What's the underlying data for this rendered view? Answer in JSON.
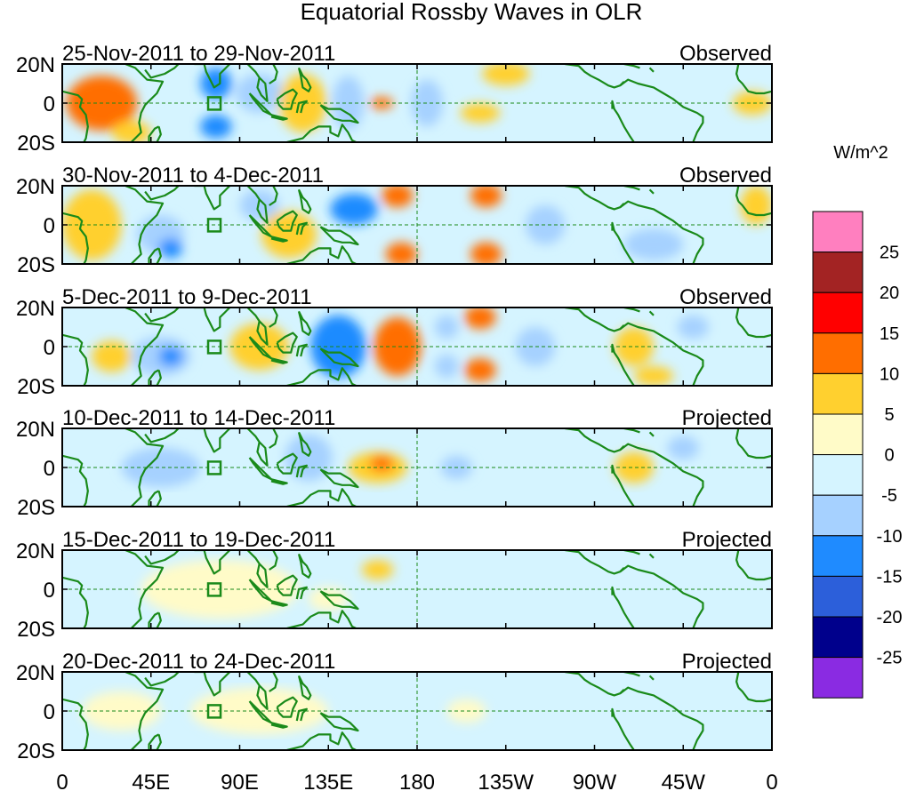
{
  "title": "Equatorial Rossby Waves in OLR",
  "colorbar": {
    "unit": "W/m^2",
    "tick_labels": [
      "25",
      "20",
      "15",
      "10",
      "5",
      "0",
      "-5",
      "-10",
      "-15",
      "-20",
      "-25"
    ],
    "colors_top_to_bottom": [
      "#ff7fbf",
      "#a32323",
      "#ff0000",
      "#ff6e00",
      "#ffd02f",
      "#fffbc8",
      "#d5f4ff",
      "#a6d1ff",
      "#1f8bff",
      "#2c5fda",
      "#00008c",
      "#8a2be2"
    ]
  },
  "x_axis": {
    "tick_labels": [
      "0",
      "45E",
      "90E",
      "135E",
      "180",
      "135W",
      "90W",
      "45W",
      "0"
    ]
  },
  "panels": [
    {
      "date_range": "25-Nov-2011 to 29-Nov-2011",
      "status": "Observed",
      "y_labels": [
        "20N",
        "0",
        "20S"
      ]
    },
    {
      "date_range": "30-Nov-2011 to 4-Dec-2011",
      "status": "Observed",
      "y_labels": [
        "20N",
        "0",
        "20S"
      ]
    },
    {
      "date_range": "5-Dec-2011 to 9-Dec-2011",
      "status": "Observed",
      "y_labels": [
        "20N",
        "0",
        "20S"
      ]
    },
    {
      "date_range": "10-Dec-2011 to 14-Dec-2011",
      "status": "Projected",
      "y_labels": [
        "20N",
        "0",
        "20S"
      ]
    },
    {
      "date_range": "15-Dec-2011 to 19-Dec-2011",
      "status": "Projected",
      "y_labels": [
        "20N",
        "0",
        "20S"
      ]
    },
    {
      "date_range": "20-Dec-2011 to 24-Dec-2011",
      "status": "Projected",
      "y_labels": [
        "20N",
        "0",
        "20S"
      ]
    }
  ],
  "anomaly_blobs": [
    [
      {
        "lon": 20,
        "lat": 0,
        "rx": 18,
        "ry": 14,
        "v": 10
      },
      {
        "lon": 35,
        "lat": -15,
        "rx": 10,
        "ry": 6,
        "v": 5
      },
      {
        "lon": 78,
        "lat": 10,
        "rx": 8,
        "ry": 8,
        "v": -10
      },
      {
        "lon": 78,
        "lat": -12,
        "rx": 8,
        "ry": 6,
        "v": -10
      },
      {
        "lon": 100,
        "lat": 5,
        "rx": 12,
        "ry": 10,
        "v": -5
      },
      {
        "lon": 122,
        "lat": 0,
        "rx": 12,
        "ry": 15,
        "v": 5
      },
      {
        "lon": 145,
        "lat": 0,
        "rx": 8,
        "ry": 14,
        "v": -5
      },
      {
        "lon": 162,
        "lat": 0,
        "rx": 6,
        "ry": 3,
        "v": 10
      },
      {
        "lon": 185,
        "lat": 0,
        "rx": 8,
        "ry": 12,
        "v": -5
      },
      {
        "lon": 225,
        "lat": 15,
        "rx": 12,
        "ry": 6,
        "v": 5
      },
      {
        "lon": 212,
        "lat": -5,
        "rx": 10,
        "ry": 5,
        "v": 5
      },
      {
        "lon": 350,
        "lat": 0,
        "rx": 10,
        "ry": 6,
        "v": 5
      }
    ],
    [
      {
        "lon": 15,
        "lat": 0,
        "rx": 15,
        "ry": 18,
        "v": 5
      },
      {
        "lon": 50,
        "lat": -5,
        "rx": 12,
        "ry": 10,
        "v": -5
      },
      {
        "lon": 55,
        "lat": -12,
        "rx": 6,
        "ry": 5,
        "v": -10
      },
      {
        "lon": 100,
        "lat": 10,
        "rx": 10,
        "ry": 8,
        "v": -5
      },
      {
        "lon": 115,
        "lat": -5,
        "rx": 14,
        "ry": 12,
        "v": 5
      },
      {
        "lon": 148,
        "lat": 8,
        "rx": 12,
        "ry": 8,
        "v": -10
      },
      {
        "lon": 170,
        "lat": 15,
        "rx": 8,
        "ry": 6,
        "v": 10
      },
      {
        "lon": 172,
        "lat": -15,
        "rx": 8,
        "ry": 6,
        "v": 10
      },
      {
        "lon": 215,
        "lat": 15,
        "rx": 8,
        "ry": 6,
        "v": 10
      },
      {
        "lon": 215,
        "lat": -15,
        "rx": 8,
        "ry": 6,
        "v": 10
      },
      {
        "lon": 245,
        "lat": 0,
        "rx": 10,
        "ry": 10,
        "v": -5
      },
      {
        "lon": 300,
        "lat": -10,
        "rx": 15,
        "ry": 8,
        "v": -5
      },
      {
        "lon": 352,
        "lat": 10,
        "rx": 8,
        "ry": 10,
        "v": 5
      }
    ],
    [
      {
        "lon": 25,
        "lat": -5,
        "rx": 10,
        "ry": 8,
        "v": 5
      },
      {
        "lon": 50,
        "lat": -5,
        "rx": 15,
        "ry": 10,
        "v": -5
      },
      {
        "lon": 55,
        "lat": -5,
        "rx": 6,
        "ry": 5,
        "v": -10
      },
      {
        "lon": 100,
        "lat": 0,
        "rx": 15,
        "ry": 12,
        "v": 5
      },
      {
        "lon": 140,
        "lat": 0,
        "rx": 14,
        "ry": 16,
        "v": -10
      },
      {
        "lon": 170,
        "lat": 0,
        "rx": 12,
        "ry": 15,
        "v": 10
      },
      {
        "lon": 195,
        "lat": 10,
        "rx": 6,
        "ry": 6,
        "v": -5
      },
      {
        "lon": 195,
        "lat": -10,
        "rx": 6,
        "ry": 6,
        "v": -5
      },
      {
        "lon": 212,
        "lat": 15,
        "rx": 8,
        "ry": 6,
        "v": 10
      },
      {
        "lon": 212,
        "lat": -12,
        "rx": 8,
        "ry": 6,
        "v": 10
      },
      {
        "lon": 240,
        "lat": 0,
        "rx": 10,
        "ry": 10,
        "v": -5
      },
      {
        "lon": 290,
        "lat": 0,
        "rx": 10,
        "ry": 10,
        "v": 5
      },
      {
        "lon": 300,
        "lat": -15,
        "rx": 10,
        "ry": 5,
        "v": 5
      },
      {
        "lon": 320,
        "lat": 10,
        "rx": 8,
        "ry": 6,
        "v": -5
      }
    ],
    [
      {
        "lon": 50,
        "lat": 0,
        "rx": 20,
        "ry": 10,
        "v": -5
      },
      {
        "lon": 125,
        "lat": 5,
        "rx": 12,
        "ry": 12,
        "v": -5
      },
      {
        "lon": 160,
        "lat": 0,
        "rx": 15,
        "ry": 8,
        "v": 5
      },
      {
        "lon": 162,
        "lat": 2,
        "rx": 6,
        "ry": 4,
        "v": 10
      },
      {
        "lon": 200,
        "lat": 0,
        "rx": 8,
        "ry": 6,
        "v": -5
      },
      {
        "lon": 290,
        "lat": 0,
        "rx": 10,
        "ry": 8,
        "v": 5
      },
      {
        "lon": 315,
        "lat": 10,
        "rx": 8,
        "ry": 6,
        "v": -5
      }
    ],
    [
      {
        "lon": 80,
        "lat": 0,
        "rx": 40,
        "ry": 15,
        "v": 0
      },
      {
        "lon": 160,
        "lat": 10,
        "rx": 8,
        "ry": 5,
        "v": 5
      },
      {
        "lon": 135,
        "lat": -5,
        "rx": 10,
        "ry": 6,
        "v": 0
      }
    ],
    [
      {
        "lon": 100,
        "lat": 0,
        "rx": 35,
        "ry": 12,
        "v": 0
      },
      {
        "lon": 30,
        "lat": 0,
        "rx": 20,
        "ry": 10,
        "v": 0
      },
      {
        "lon": 205,
        "lat": 0,
        "rx": 10,
        "ry": 6,
        "v": 0
      }
    ]
  ]
}
